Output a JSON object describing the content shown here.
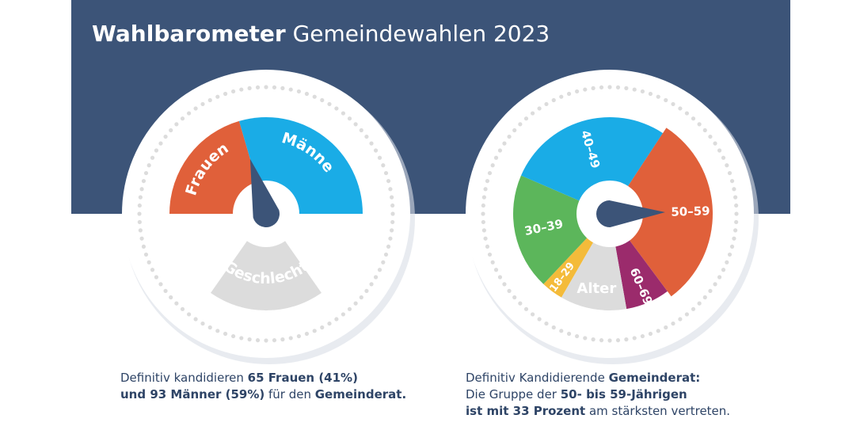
{
  "title": {
    "bold": "Wahlbarometer",
    "regular": "Gemeindewahlen 2023"
  },
  "captions": {
    "left": {
      "p1": "Definitiv kandidieren ",
      "b1": "65 Frauen (41%)",
      "b2": "und 93 Männer (59%)",
      "p2": " für den ",
      "b3": "Gemeinderat."
    },
    "right": {
      "p1": "Definitiv Kandidierende ",
      "b1": "Gemeinderat:",
      "p2": "Die Gruppe der ",
      "b2": "50- bis 59-Jährigen",
      "b3": "ist mit 33 Prozent",
      "p3": " am stärksten vertreten."
    }
  },
  "colors": {
    "header": "#3c5478",
    "frauen": "#e0603a",
    "maenner": "#1aace6",
    "g18_29": "#f4bb3a",
    "g30_39": "#5cb65b",
    "g40_49": "#1aace6",
    "g50_59": "#e0603a",
    "g60_69": "#9b2b6c",
    "category": "#dcdcdc",
    "needle": "#3c5478"
  },
  "chart_data": [
    {
      "type": "pie",
      "categories": [
        "Frauen",
        "Männer"
      ],
      "values": [
        41,
        59
      ],
      "counts": [
        65,
        93
      ],
      "category_label": "Geschlecht"
    },
    {
      "type": "pie",
      "categories": [
        "18–29",
        "30–39",
        "40–49",
        "50–59",
        "60–69"
      ],
      "values": [
        4,
        21,
        30,
        33,
        8
      ],
      "highlight": "50–59",
      "category_label": "Alter"
    }
  ]
}
